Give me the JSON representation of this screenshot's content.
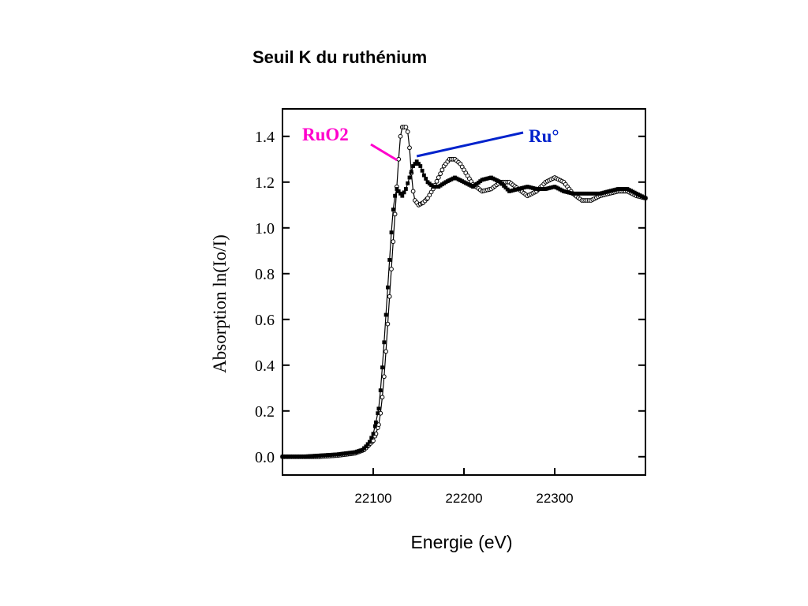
{
  "slide": {
    "title": "Seuil K du ruthénium"
  },
  "chart_data": {
    "type": "scatter",
    "title": "Seuil K du ruthénium",
    "xlabel": "Energie (eV)",
    "ylabel": "Absorption ln(Io/I)",
    "xlim": [
      22000,
      22400
    ],
    "ylim": [
      -0.08,
      1.52
    ],
    "x_ticks": [
      22100,
      22200,
      22300
    ],
    "y_ticks": [
      0.0,
      0.2,
      0.4,
      0.6,
      0.8,
      1.0,
      1.2,
      1.4
    ],
    "y_tick_labels": [
      "0.0",
      "0.2",
      "0.4",
      "0.6",
      "0.8",
      "1.0",
      "1.2",
      "1.4"
    ],
    "grid": false,
    "legend": "none",
    "annotations": [
      {
        "text": "RuO2",
        "color": "#ff00cc",
        "series": "RuO2",
        "points_to": [
          22122,
          1.24
        ]
      },
      {
        "text": "Ru°",
        "color": "#0022cc",
        "series": "Ru°",
        "points_to": [
          22148,
          1.28
        ]
      }
    ],
    "series": [
      {
        "name": "RuO2",
        "marker": "open-circle",
        "color": "#000000",
        "x": [
          22000,
          22020,
          22040,
          22060,
          22080,
          22090,
          22095,
          22100,
          22103,
          22106,
          22108,
          22110,
          22112,
          22114,
          22116,
          22118,
          22120,
          22122,
          22124,
          22126,
          22128,
          22130,
          22132,
          22134,
          22136,
          22138,
          22140,
          22142,
          22144,
          22146,
          22150,
          22155,
          22160,
          22166,
          22172,
          22178,
          22184,
          22190,
          22196,
          22202,
          22210,
          22220,
          22230,
          22240,
          22250,
          22260,
          22270,
          22280,
          22290,
          22300,
          22310,
          22320,
          22330,
          22340,
          22350,
          22360,
          22370,
          22380,
          22390,
          22400
        ],
        "y": [
          0.0,
          0.0,
          0.0,
          0.005,
          0.015,
          0.03,
          0.05,
          0.07,
          0.1,
          0.14,
          0.19,
          0.26,
          0.35,
          0.46,
          0.58,
          0.7,
          0.82,
          0.94,
          1.06,
          1.18,
          1.3,
          1.4,
          1.44,
          1.44,
          1.44,
          1.42,
          1.35,
          1.24,
          1.16,
          1.12,
          1.1,
          1.11,
          1.13,
          1.17,
          1.22,
          1.27,
          1.3,
          1.3,
          1.28,
          1.24,
          1.19,
          1.16,
          1.17,
          1.2,
          1.2,
          1.17,
          1.14,
          1.16,
          1.2,
          1.22,
          1.2,
          1.15,
          1.12,
          1.12,
          1.14,
          1.15,
          1.16,
          1.16,
          1.14,
          1.13
        ]
      },
      {
        "name": "Ru°",
        "marker": "filled-square",
        "color": "#000000",
        "x": [
          22000,
          22020,
          22040,
          22060,
          22080,
          22088,
          22092,
          22096,
          22100,
          22103,
          22106,
          22108,
          22110,
          22112,
          22114,
          22116,
          22118,
          22120,
          22122,
          22124,
          22126,
          22128,
          22132,
          22136,
          22140,
          22144,
          22148,
          22152,
          22156,
          22160,
          22166,
          22172,
          22180,
          22190,
          22200,
          22210,
          22220,
          22230,
          22240,
          22250,
          22260,
          22270,
          22280,
          22290,
          22300,
          22310,
          22320,
          22330,
          22340,
          22350,
          22360,
          22370,
          22380,
          22390,
          22400
        ],
        "y": [
          0.0,
          0.0,
          0.005,
          0.01,
          0.02,
          0.03,
          0.045,
          0.065,
          0.1,
          0.15,
          0.21,
          0.29,
          0.39,
          0.5,
          0.62,
          0.74,
          0.86,
          0.98,
          1.08,
          1.14,
          1.17,
          1.16,
          1.14,
          1.17,
          1.22,
          1.27,
          1.29,
          1.27,
          1.23,
          1.2,
          1.18,
          1.18,
          1.2,
          1.22,
          1.2,
          1.18,
          1.21,
          1.22,
          1.2,
          1.16,
          1.17,
          1.18,
          1.17,
          1.17,
          1.18,
          1.16,
          1.15,
          1.15,
          1.15,
          1.15,
          1.16,
          1.17,
          1.17,
          1.15,
          1.13
        ]
      }
    ]
  }
}
